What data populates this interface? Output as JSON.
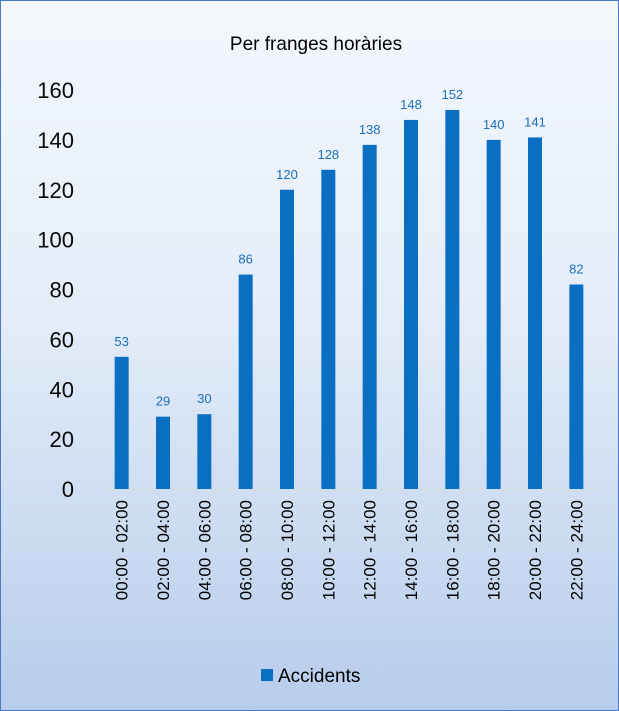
{
  "chart_data": {
    "type": "bar",
    "title": "Per franges horàries",
    "categories": [
      "00:00 - 02:00",
      "02:00 - 04:00",
      "04:00 - 06:00",
      "06:00 - 08:00",
      "08:00 - 10:00",
      "10:00 - 12:00",
      "12:00 - 14:00",
      "14:00 - 16:00",
      "16:00 - 18:00",
      "18:00 - 20:00",
      "20:00 - 22:00",
      "22:00 - 24:00"
    ],
    "series": [
      {
        "name": "Accidents",
        "values": [
          53,
          29,
          30,
          86,
          120,
          128,
          138,
          148,
          152,
          140,
          141,
          82
        ]
      }
    ],
    "yticks": [
      0,
      20,
      40,
      60,
      80,
      100,
      120,
      140,
      160
    ],
    "ylim": [
      0,
      160
    ],
    "data_labels": true,
    "grid": false,
    "legend_position": "bottom",
    "colors": {
      "bar": "#0a6fc2",
      "label": "#1b6fba",
      "border": "#4a7bc8"
    }
  }
}
